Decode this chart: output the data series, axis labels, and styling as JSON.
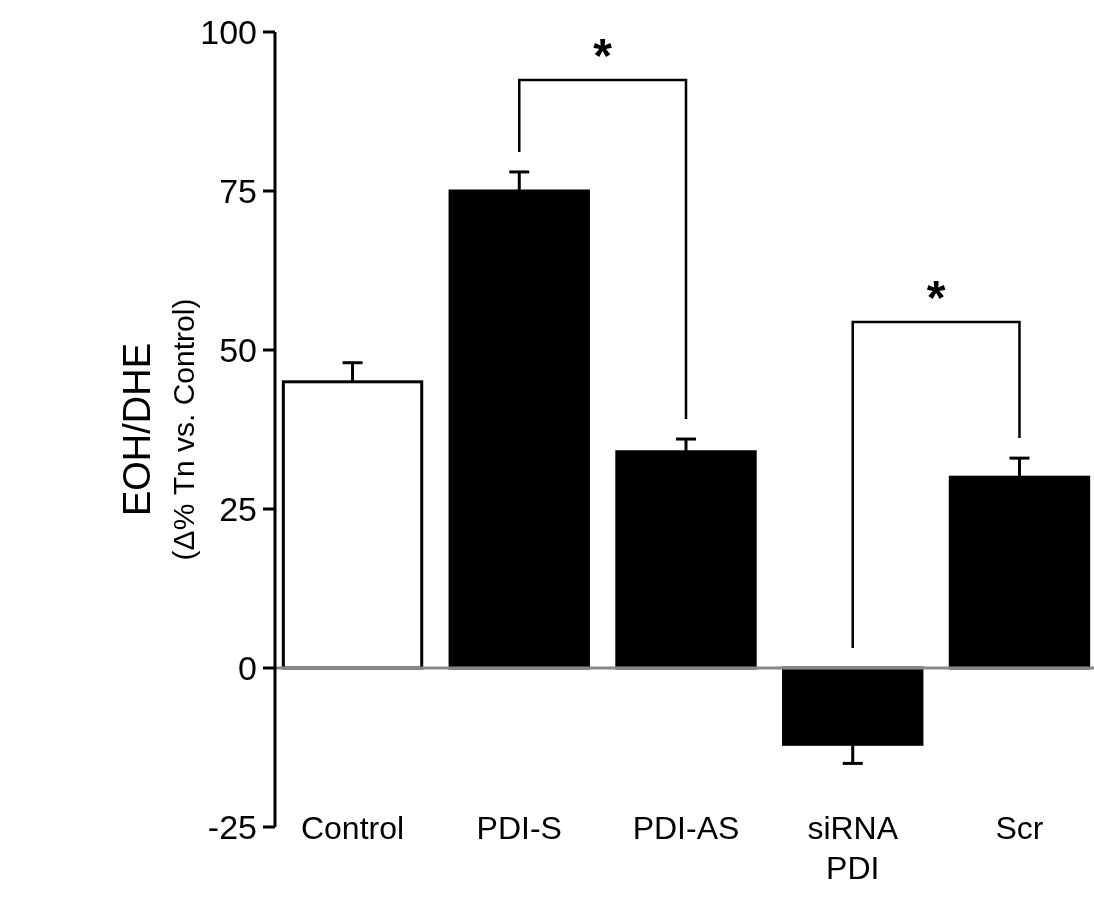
{
  "chart_data": {
    "type": "bar",
    "ylabel": "EOH/DHE\n(Δ% Tn vs. Control)",
    "categories": [
      "Control",
      "PDI-S",
      "PDI-AS",
      "siRNA\nPDI",
      "Scr"
    ],
    "values": [
      45,
      75,
      34,
      -12,
      30
    ],
    "errors": [
      3,
      3,
      2,
      3,
      3
    ],
    "colors": [
      "#ffffff",
      "#000000",
      "#000000",
      "#000000",
      "#000000"
    ],
    "ylim": [
      -25,
      100
    ],
    "yticks": [
      -25,
      0,
      25,
      50,
      75,
      100
    ],
    "ref_lines": [
      {
        "axis": "y",
        "value": 0,
        "color": "#888888"
      }
    ],
    "annotations": [
      "*",
      "*"
    ]
  }
}
